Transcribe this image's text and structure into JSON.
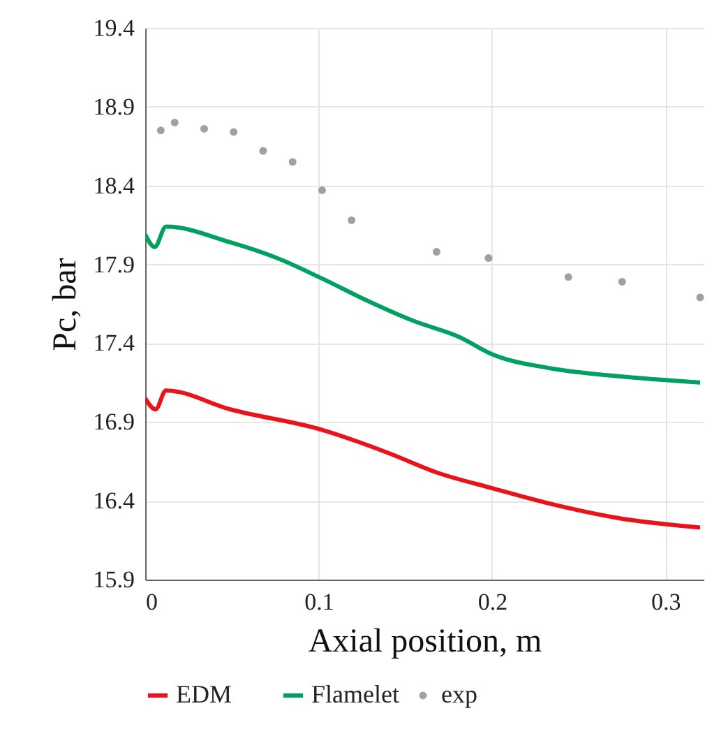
{
  "chart_data": {
    "type": "line",
    "xlabel": "Axial position, m",
    "ylabel": "Pc, bar",
    "xlim": [
      0,
      0.322
    ],
    "xticks": [
      0,
      0.1,
      0.2,
      0.3
    ],
    "ylim": [
      15.9,
      19.4
    ],
    "yticks": [
      15.9,
      16.4,
      16.9,
      17.4,
      17.9,
      18.4,
      18.9,
      19.4
    ],
    "grid": true,
    "legend": "bottom",
    "series": [
      {
        "name": "EDM",
        "color": "#e8141b",
        "x": [
          0,
          0.006,
          0.012,
          0.049,
          0.102,
          0.141,
          0.168,
          0.2,
          0.234,
          0.273,
          0.32
        ],
        "values": [
          17.05,
          16.98,
          17.1,
          16.98,
          16.85,
          16.7,
          16.58,
          16.48,
          16.38,
          16.29,
          16.23
        ]
      },
      {
        "name": "Flamelet",
        "color": "#00a060",
        "x": [
          0,
          0.0055,
          0.012,
          0.049,
          0.076,
          0.102,
          0.128,
          0.155,
          0.181,
          0.2,
          0.234,
          0.273,
          0.32
        ],
        "values": [
          18.09,
          18.01,
          18.14,
          18.04,
          17.94,
          17.81,
          17.67,
          17.54,
          17.44,
          17.33,
          17.24,
          17.19,
          17.15
        ]
      },
      {
        "name": "exp",
        "color": "#a0a0a0",
        "type": "scatter",
        "marker": "circle",
        "x": [
          0.009,
          0.017,
          0.034,
          0.051,
          0.068,
          0.085,
          0.102,
          0.119,
          0.168,
          0.198,
          0.244,
          0.275,
          0.32
        ],
        "values": [
          18.75,
          18.8,
          18.76,
          18.74,
          18.62,
          18.55,
          18.37,
          18.18,
          17.98,
          17.94,
          17.82,
          17.79,
          17.69
        ]
      }
    ]
  }
}
